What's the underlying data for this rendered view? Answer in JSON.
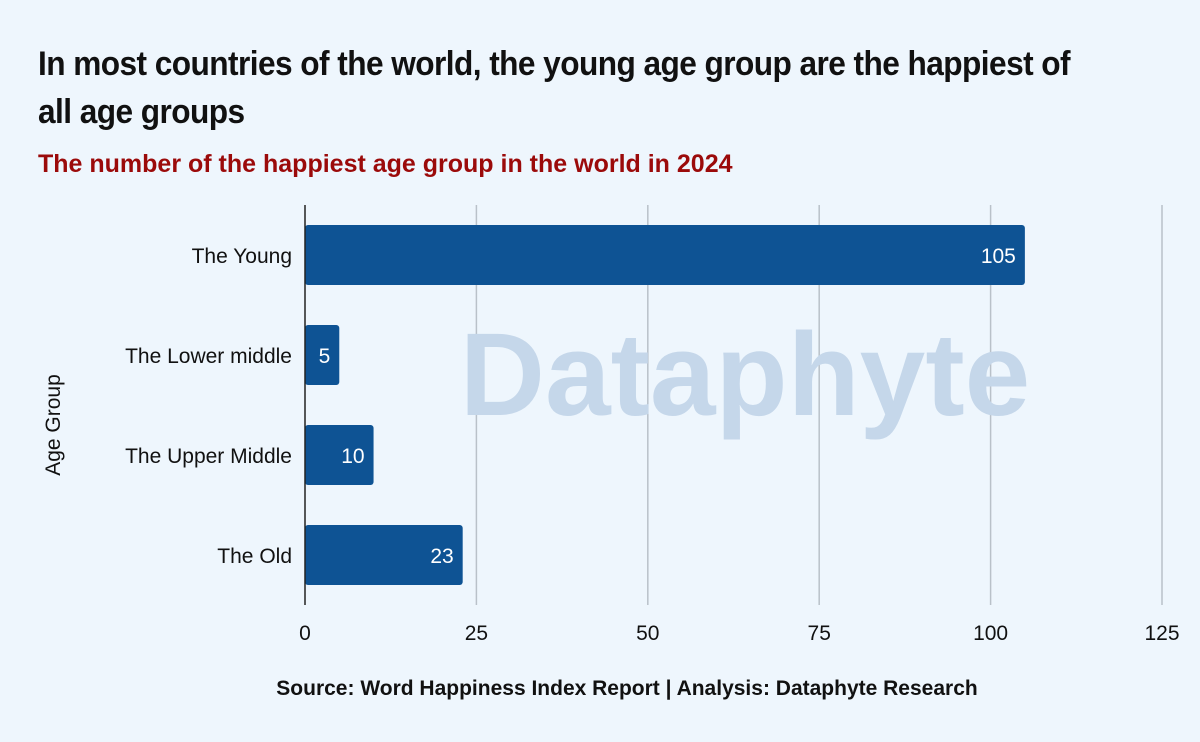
{
  "title": "In most countries of the world, the young age group are the happiest of all age groups",
  "subtitle": "The number of the happiest age group in the world in 2024",
  "source": "Source: Word Happiness Index Report | Analysis: Dataphyte Research",
  "watermark": "Dataphyte",
  "colors": {
    "bar": "#0e5394",
    "title": "#111111",
    "subtitle": "#9b0a0a",
    "background": "#eef6fd",
    "watermark": "#c5d7ea"
  },
  "chart_data": {
    "type": "bar",
    "orientation": "horizontal",
    "categories": [
      "The Young",
      "The Lower middle",
      "The Upper Middle",
      "The Old"
    ],
    "values": [
      105,
      5,
      10,
      23
    ],
    "data_labels": [
      "105",
      "5",
      "10",
      "23"
    ],
    "ylabel": "Age Group",
    "xlabel": "",
    "xlim": [
      0,
      125
    ],
    "x_ticks": [
      0,
      25,
      50,
      75,
      100,
      125
    ],
    "x_tick_labels": [
      "0",
      "25",
      "50",
      "75",
      "100",
      "125"
    ],
    "grid": true,
    "legend": "none"
  }
}
